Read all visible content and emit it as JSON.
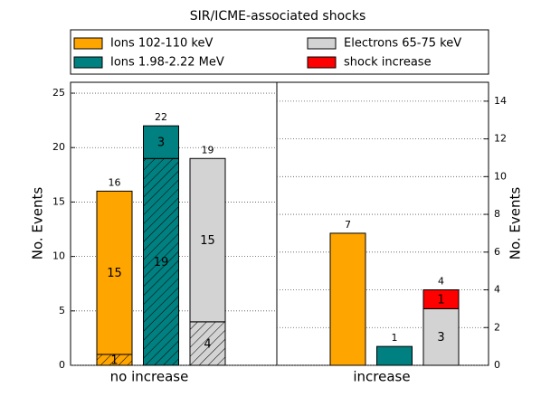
{
  "chart_data": {
    "type": "bar",
    "title": "SIR/ICME-associated shocks",
    "ylabel": "No. Events",
    "y2label": "No. Events",
    "ylim": [
      0,
      26
    ],
    "yticks": [
      0,
      5,
      10,
      15,
      20,
      25
    ],
    "y2lim": [
      0,
      15
    ],
    "y2ticks": [
      0,
      2,
      4,
      6,
      8,
      10,
      12,
      14
    ],
    "grid": true,
    "series": [
      {
        "name": "Ions 102-110 keV",
        "color": "#ffa500"
      },
      {
        "name": "Ions 1.98-2.22 MeV",
        "color": "#008080"
      },
      {
        "name": "Electrons 65-75 keV",
        "color": "#d3d3d3"
      },
      {
        "name": "shock increase",
        "color": "#ff0000"
      }
    ],
    "groups": [
      {
        "category": "no increase",
        "axis": "y",
        "bars": [
          {
            "total": 16,
            "segments": [
              {
                "value": 1,
                "color": "#ffa500",
                "hatch": true
              },
              {
                "value": 15,
                "color": "#ffa500"
              }
            ]
          },
          {
            "total": 22,
            "segments": [
              {
                "value": 19,
                "color": "#008080",
                "hatch": true
              },
              {
                "value": 3,
                "color": "#008080"
              }
            ]
          },
          {
            "total": 19,
            "segments": [
              {
                "value": 4,
                "color": "#d3d3d3",
                "hatch": true
              },
              {
                "value": 15,
                "color": "#d3d3d3"
              }
            ]
          }
        ]
      },
      {
        "category": "increase",
        "axis": "y2",
        "bars": [
          {
            "total": 7,
            "segments": [
              {
                "value": 7,
                "color": "#ffa500"
              }
            ]
          },
          {
            "total": 1,
            "segments": [
              {
                "value": 1,
                "color": "#008080"
              }
            ]
          },
          {
            "total": 4,
            "segments": [
              {
                "value": 3,
                "color": "#d3d3d3"
              },
              {
                "value": 1,
                "color": "#ff0000"
              }
            ]
          }
        ]
      }
    ]
  }
}
